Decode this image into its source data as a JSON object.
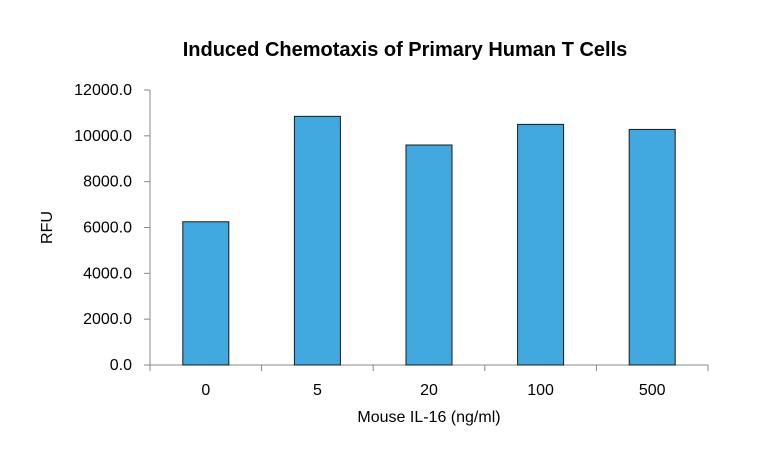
{
  "chart_data": {
    "type": "bar",
    "title": "Induced Chemotaxis of Primary Human T Cells",
    "xlabel": "Mouse IL-16 (ng/ml)",
    "ylabel": "RFU",
    "categories": [
      "0",
      "5",
      "20",
      "100",
      "500"
    ],
    "values": [
      6250,
      10850,
      9600,
      10500,
      10280
    ],
    "ylim": [
      0,
      12000
    ],
    "yticks": [
      "0.0",
      "2000.0",
      "4000.0",
      "6000.0",
      "8000.0",
      "10000.0",
      "12000.0"
    ],
    "bar_color": "#41a8e0",
    "grid": false,
    "legend": "none"
  }
}
